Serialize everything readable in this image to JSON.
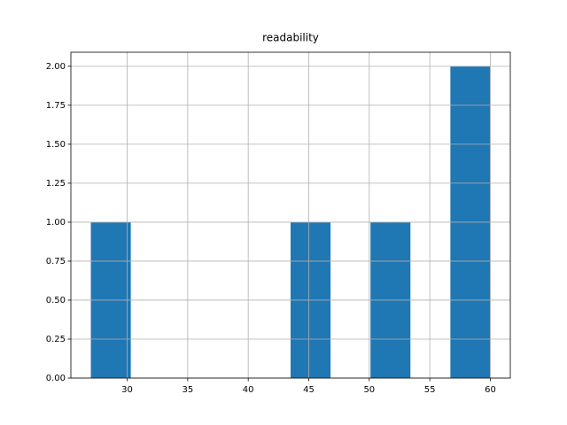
{
  "chart_data": {
    "type": "histogram",
    "title": "readability",
    "bins": [
      27,
      30.3,
      33.6,
      36.9,
      40.2,
      43.5,
      46.8,
      50.1,
      53.4,
      56.7,
      60
    ],
    "values": [
      1,
      0,
      0,
      0,
      0,
      1,
      0,
      1,
      0,
      2
    ],
    "color": "#1f77b4",
    "xlim": [
      25.35,
      61.65
    ],
    "xticks": [
      30,
      35,
      40,
      45,
      50,
      55,
      60
    ],
    "ylim": [
      0,
      2.09
    ],
    "yticks": [
      {
        "value": 0,
        "label": "0.00"
      },
      {
        "value": 0.25,
        "label": "0.25"
      },
      {
        "value": 0.5,
        "label": "0.50"
      },
      {
        "value": 0.75,
        "label": "0.75"
      },
      {
        "value": 1,
        "label": "1.00"
      },
      {
        "value": 1.25,
        "label": "1.25"
      },
      {
        "value": 1.5,
        "label": "1.50"
      },
      {
        "value": 1.75,
        "label": "1.75"
      },
      {
        "value": 2,
        "label": "2.00"
      }
    ],
    "grid": true
  }
}
